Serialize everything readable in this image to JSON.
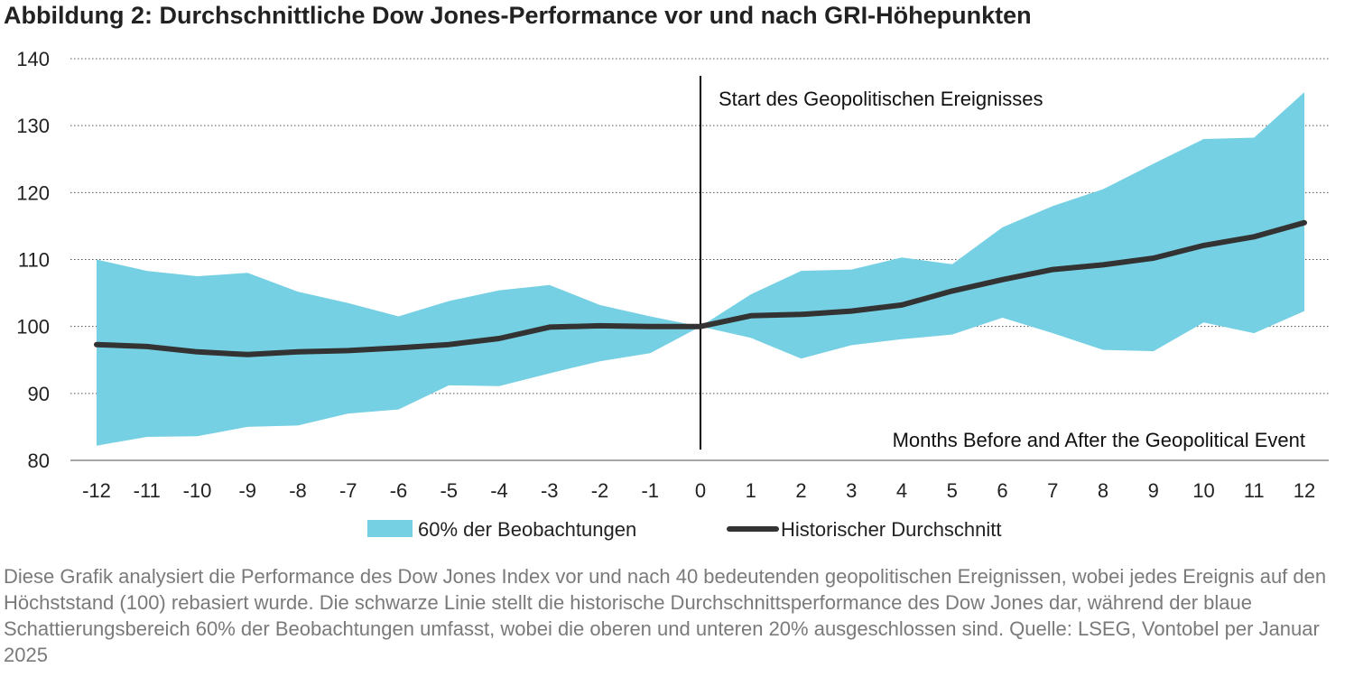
{
  "chart_data": {
    "type": "area",
    "title": "Abbildung 2: Durchschnittliche Dow Jones-Performance vor und nach GRI-Höhepunkten",
    "x": [
      -12,
      -11,
      -10,
      -9,
      -8,
      -7,
      -6,
      -5,
      -4,
      -3,
      -2,
      -1,
      0,
      1,
      2,
      3,
      4,
      5,
      6,
      7,
      8,
      9,
      10,
      11,
      12
    ],
    "ylim": [
      80,
      140
    ],
    "yticks": [
      80,
      90,
      100,
      110,
      120,
      130,
      140
    ],
    "grid": true,
    "xlabel_annotation": "Months Before and After the Geopolitical Event",
    "event_annotation": "Start des Geopolitischen Ereignisses",
    "event_x": 0,
    "legend_position": "bottom",
    "colors": {
      "band": "#76d0e3",
      "line": "#333333",
      "grid": "#555555",
      "event_line": "#000000"
    },
    "series": [
      {
        "name": "60% der Beobachtungen",
        "kind": "band",
        "upper": [
          110,
          108.3,
          107.5,
          108,
          105.2,
          103.5,
          101.5,
          103.8,
          105.4,
          106.2,
          103.2,
          101.5,
          100,
          104.8,
          108.3,
          108.5,
          110.3,
          109.3,
          114.8,
          118,
          120.5,
          124.3,
          128,
          128.2,
          135
        ],
        "lower": [
          82.2,
          83.5,
          83.6,
          85,
          85.2,
          87,
          87.6,
          91.2,
          91.1,
          93,
          94.8,
          96,
          100,
          98.3,
          95.2,
          97.2,
          98.1,
          98.8,
          101.3,
          99,
          96.5,
          96.3,
          100.6,
          99,
          102.3
        ]
      },
      {
        "name": "Historischer Durchschnitt",
        "kind": "line",
        "values": [
          97.3,
          97,
          96.2,
          95.8,
          96.2,
          96.4,
          96.8,
          97.3,
          98.2,
          99.9,
          100.1,
          100,
          100,
          101.6,
          101.8,
          102.3,
          103.2,
          105.3,
          107,
          108.5,
          109.2,
          110.2,
          112.1,
          113.4,
          115.5
        ]
      }
    ]
  },
  "caption": "Diese Grafik analysiert die Performance des Dow Jones Index vor und nach 40 bedeutenden geopolitischen Ereignissen, wobei jedes Ereignis auf den Höchststand (100) rebasiert wurde. Die schwarze Linie stellt die historische Durchschnittsperformance des Dow Jones dar, während der blaue Schattierungsbereich 60% der Beobachtungen umfasst, wobei die oberen und unteren 20% ausgeschlossen sind. Quelle: LSEG, Vontobel per Januar 2025"
}
